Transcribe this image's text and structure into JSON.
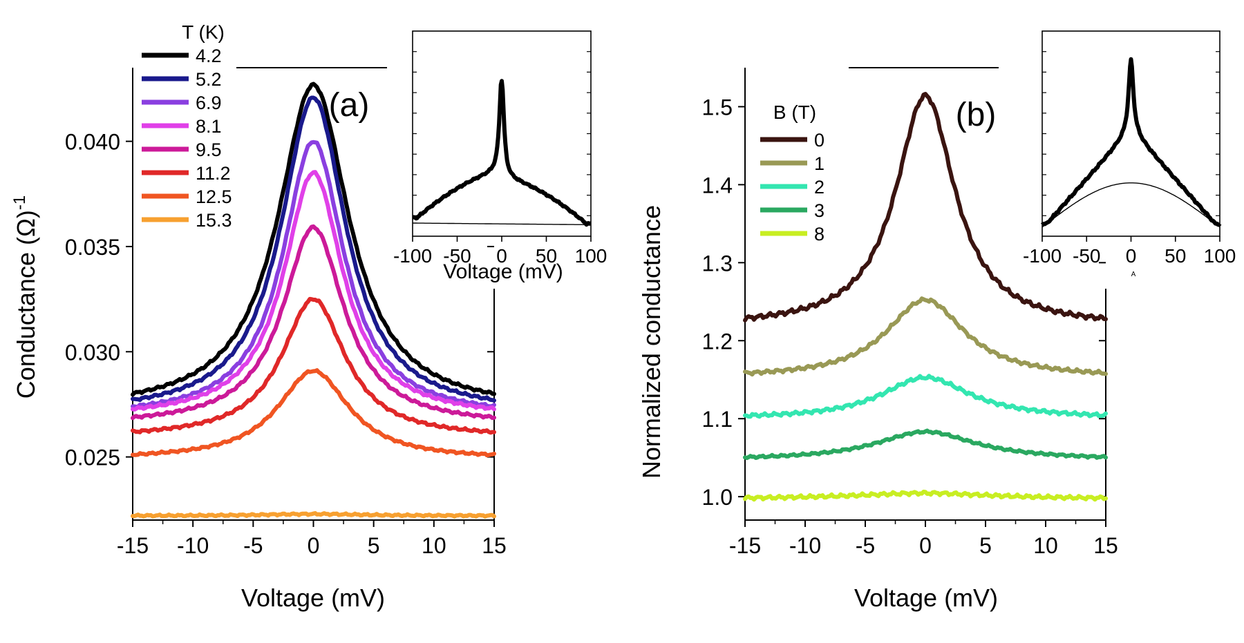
{
  "chart_data": [
    {
      "panel": "main-a",
      "type": "line",
      "label": "(a)",
      "xlabel": "Voltage (mV)",
      "ylabel": "Conductance (Ω)",
      "ylabel_sup": "-1",
      "xlim": [
        -15,
        15
      ],
      "ylim": [
        0.022,
        0.0435
      ],
      "xticks": [
        -15,
        -10,
        -5,
        0,
        5,
        10,
        15
      ],
      "yticks": [
        0.025,
        0.03,
        0.035,
        0.04
      ],
      "ytick_labels": [
        "0.025",
        "0.030",
        "0.035",
        "0.040"
      ],
      "legend_title": "T (K)",
      "legend_position": "top-left",
      "series": [
        {
          "name": "4.2",
          "color": "#000000",
          "edge": 0.028,
          "peak": 0.0427,
          "width": 3.6,
          "noise": 8e-05
        },
        {
          "name": "5.2",
          "color": "#1a1a8c",
          "edge": 0.0277,
          "peak": 0.0421,
          "width": 3.3,
          "noise": 8e-05
        },
        {
          "name": "6.9",
          "color": "#8a3fe0",
          "edge": 0.0274,
          "peak": 0.04,
          "width": 3.1,
          "noise": 8e-05
        },
        {
          "name": "8.1",
          "color": "#e040e8",
          "edge": 0.0273,
          "peak": 0.0385,
          "width": 3.0,
          "noise": 8e-05
        },
        {
          "name": "9.5",
          "color": "#cc1a99",
          "edge": 0.0269,
          "peak": 0.0359,
          "width": 3.1,
          "noise": 8e-05
        },
        {
          "name": "11.2",
          "color": "#e02828",
          "edge": 0.0262,
          "peak": 0.0325,
          "width": 3.2,
          "noise": 8e-05
        },
        {
          "name": "12.5",
          "color": "#f05522",
          "edge": 0.0251,
          "peak": 0.0291,
          "width": 3.6,
          "noise": 7e-05
        },
        {
          "name": "15.3",
          "color": "#f7a030",
          "edge": 0.0222,
          "peak": 0.0223,
          "width": 6.0,
          "noise": 6e-05
        }
      ]
    },
    {
      "panel": "inset-a",
      "type": "line",
      "xlabel": "Voltage (mV)",
      "xlim": [
        -100,
        100
      ],
      "ylim": [
        0,
        1
      ],
      "xticks": [
        -100,
        -50,
        0,
        50,
        100
      ],
      "series": [
        {
          "name": "data",
          "color": "#000000"
        },
        {
          "name": "background",
          "color": "#000000"
        }
      ]
    },
    {
      "panel": "main-b",
      "type": "line",
      "label": "(b)",
      "xlabel": "Voltage (mV)",
      "ylabel": "Normalized conductance",
      "xlim": [
        -15,
        15
      ],
      "ylim": [
        0.97,
        1.55
      ],
      "xticks": [
        -15,
        -10,
        -5,
        0,
        5,
        10,
        15
      ],
      "yticks": [
        1.0,
        1.1,
        1.2,
        1.3,
        1.4,
        1.5
      ],
      "ytick_labels": [
        "1.0",
        "1.1",
        "1.2",
        "1.3",
        "1.4",
        "1.5"
      ],
      "legend_title": "B (T)",
      "legend_position": "top-left",
      "series": [
        {
          "name": "0",
          "color": "#3a1410",
          "edge": 1.228,
          "peak": 1.515,
          "width": 3.0,
          "noise": 0.004
        },
        {
          "name": "1",
          "color": "#999955",
          "edge": 1.158,
          "peak": 1.253,
          "width": 4.0,
          "noise": 0.003
        },
        {
          "name": "2",
          "color": "#33e6b0",
          "edge": 1.104,
          "peak": 1.153,
          "width": 4.5,
          "noise": 0.003
        },
        {
          "name": "3",
          "color": "#2aa860",
          "edge": 1.051,
          "peak": 1.083,
          "width": 5.0,
          "noise": 0.002
        },
        {
          "name": "8",
          "color": "#c8ee22",
          "edge": 0.999,
          "peak": 1.004,
          "width": 6.0,
          "noise": 0.003
        }
      ]
    },
    {
      "panel": "inset-b",
      "type": "line",
      "xlim": [
        -100,
        100
      ],
      "ylim": [
        0,
        1
      ],
      "xticks": [
        -100,
        -50,
        0,
        50,
        100
      ],
      "footnote": "A",
      "series": [
        {
          "name": "data",
          "color": "#000000"
        },
        {
          "name": "background",
          "color": "#000000"
        }
      ]
    }
  ]
}
